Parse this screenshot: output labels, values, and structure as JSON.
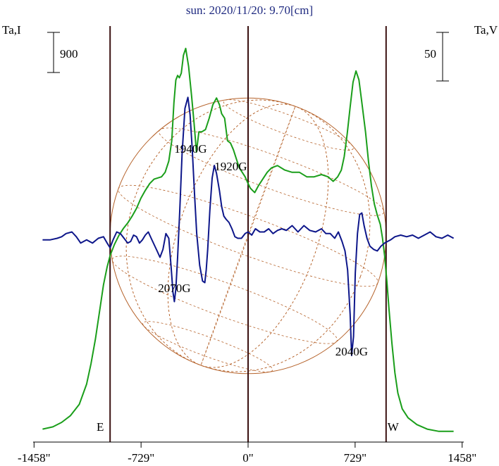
{
  "chart_data": {
    "type": "line",
    "title": "sun: 2020/11/20: 9.70[cm]",
    "left_axis_label": "Ta,I",
    "right_axis_label": "Ta,V",
    "left_scale_bar": "900",
    "right_scale_bar": "50",
    "x_ticks": [
      {
        "value": -1458,
        "label": "-1458\""
      },
      {
        "value": -729,
        "label": "-729\""
      },
      {
        "value": 0,
        "label": "0\""
      },
      {
        "value": 729,
        "label": "729\""
      },
      {
        "value": 1458,
        "label": "1458\""
      }
    ],
    "xlim": [
      -1458,
      1458
    ],
    "limb_markers": [
      {
        "x": -940,
        "label": "E"
      },
      {
        "x": 0,
        "label": ""
      },
      {
        "x": 940,
        "label": "W"
      }
    ],
    "annotations": [
      {
        "text": "1940G",
        "x": -392,
        "y_frac": 0.56
      },
      {
        "text": "1920G",
        "x": -118,
        "y_frac": 0.45
      },
      {
        "text": "2070G",
        "x": -502,
        "y_frac": -0.32
      },
      {
        "text": "2040G",
        "x": 705,
        "y_frac": -0.72
      }
    ],
    "series": [
      {
        "name": "I",
        "color": "#1a9e1a",
        "x": [
          -1400,
          -1330,
          -1270,
          -1210,
          -1150,
          -1100,
          -1070,
          -1040,
          -1010,
          -985,
          -960,
          -940,
          -910,
          -880,
          -850,
          -820,
          -790,
          -760,
          -730,
          -700,
          -670,
          -640,
          -615,
          -590,
          -565,
          -540,
          -520,
          -505,
          -492,
          -480,
          -468,
          -455,
          -440,
          -425,
          -405,
          -385,
          -368,
          -352,
          -335,
          -315,
          -290,
          -265,
          -240,
          -215,
          -195,
          -180,
          -160,
          -140,
          -120,
          -100,
          -80,
          -60,
          -40,
          -20,
          0,
          15,
          30,
          45,
          70,
          100,
          130,
          160,
          200,
          250,
          300,
          350,
          400,
          450,
          500,
          545,
          580,
          610,
          635,
          655,
          675,
          695,
          715,
          735,
          755,
          775,
          800,
          820,
          840,
          860,
          880,
          900,
          915,
          930,
          945,
          960,
          980,
          1000,
          1020,
          1050,
          1090,
          1150,
          1220,
          1300,
          1400
        ],
        "y": [
          0.02,
          0.03,
          0.05,
          0.08,
          0.13,
          0.22,
          0.31,
          0.42,
          0.55,
          0.66,
          0.74,
          0.79,
          0.84,
          0.88,
          0.91,
          0.935,
          0.965,
          1.0,
          1.045,
          1.08,
          1.11,
          1.13,
          1.135,
          1.14,
          1.16,
          1.21,
          1.3,
          1.47,
          1.57,
          1.59,
          1.58,
          1.6,
          1.68,
          1.71,
          1.63,
          1.5,
          1.38,
          1.25,
          1.34,
          1.34,
          1.35,
          1.4,
          1.46,
          1.49,
          1.46,
          1.42,
          1.4,
          1.3,
          1.29,
          1.26,
          1.22,
          1.18,
          1.16,
          1.14,
          1.11,
          1.09,
          1.08,
          1.07,
          1.1,
          1.13,
          1.16,
          1.18,
          1.19,
          1.17,
          1.16,
          1.16,
          1.14,
          1.14,
          1.15,
          1.14,
          1.12,
          1.14,
          1.17,
          1.23,
          1.33,
          1.45,
          1.56,
          1.61,
          1.57,
          1.47,
          1.34,
          1.21,
          1.1,
          1.02,
          0.97,
          0.93,
          0.87,
          0.79,
          0.68,
          0.55,
          0.4,
          0.27,
          0.18,
          0.11,
          0.07,
          0.04,
          0.02,
          0.01,
          0.01
        ]
      },
      {
        "name": "V",
        "color": "#0d168a",
        "x": [
          -1400,
          -1350,
          -1300,
          -1270,
          -1240,
          -1200,
          -1170,
          -1140,
          -1100,
          -1060,
          -1020,
          -985,
          -960,
          -940,
          -920,
          -895,
          -870,
          -845,
          -820,
          -800,
          -780,
          -760,
          -740,
          -720,
          -700,
          -680,
          -660,
          -640,
          -620,
          -600,
          -580,
          -560,
          -540,
          -525,
          -512,
          -502,
          -492,
          -480,
          -465,
          -450,
          -430,
          -410,
          -395,
          -380,
          -365,
          -350,
          -330,
          -310,
          -295,
          -285,
          -275,
          -260,
          -245,
          -230,
          -215,
          -195,
          -180,
          -165,
          -150,
          -130,
          -110,
          -90,
          -70,
          -45,
          -20,
          0,
          25,
          50,
          80,
          110,
          140,
          170,
          200,
          230,
          260,
          300,
          340,
          380,
          420,
          460,
          500,
          530,
          560,
          590,
          615,
          640,
          660,
          678,
          695,
          705,
          718,
          730,
          745,
          760,
          775,
          790,
          810,
          830,
          855,
          880,
          905,
          930,
          950,
          970,
          1000,
          1040,
          1080,
          1120,
          1160,
          1200,
          1240,
          1280,
          1320,
          1360,
          1400
        ],
        "y": [
          0.01,
          0.01,
          0.02,
          0.03,
          0.05,
          0.06,
          0.03,
          -0.01,
          0.01,
          -0.01,
          0.02,
          0.03,
          -0.01,
          -0.04,
          0.01,
          0.06,
          0.05,
          0.02,
          -0.01,
          0.0,
          0.04,
          0.03,
          -0.01,
          0.01,
          0.04,
          0.06,
          0.02,
          -0.02,
          -0.06,
          -0.1,
          -0.05,
          0.05,
          0.02,
          -0.15,
          -0.32,
          -0.38,
          -0.3,
          -0.1,
          0.2,
          0.55,
          0.84,
          0.91,
          0.8,
          0.58,
          0.3,
          0.05,
          -0.15,
          -0.25,
          -0.26,
          -0.18,
          -0.05,
          0.2,
          0.4,
          0.48,
          0.43,
          0.32,
          0.22,
          0.16,
          0.14,
          0.12,
          0.08,
          0.03,
          0.02,
          0.02,
          0.05,
          0.06,
          0.04,
          0.08,
          0.06,
          0.06,
          0.08,
          0.05,
          0.07,
          0.08,
          0.07,
          0.1,
          0.06,
          0.1,
          0.07,
          0.06,
          0.08,
          0.05,
          0.05,
          0.02,
          0.06,
          0.0,
          -0.06,
          -0.18,
          -0.46,
          -0.72,
          -0.6,
          -0.2,
          0.05,
          0.17,
          0.18,
          0.1,
          0.02,
          -0.03,
          -0.05,
          -0.06,
          -0.03,
          -0.01,
          0.0,
          0.01,
          0.03,
          0.04,
          0.03,
          0.04,
          0.02,
          0.04,
          0.06,
          0.03,
          0.02,
          0.04,
          0.02
        ]
      }
    ],
    "sun_disk": {
      "radius_arcsec": 940,
      "grid": true,
      "color": "#b5622a"
    },
    "grid": false
  }
}
